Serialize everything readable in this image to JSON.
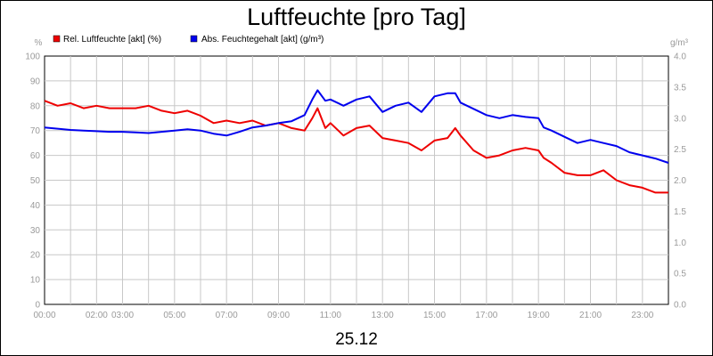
{
  "chart_data": {
    "type": "line",
    "title": "Luftfeuchte [pro Tag]",
    "footer": "25.12",
    "y_left_unit": "%",
    "y_right_unit": "g/m³",
    "y_left_ticks": [
      "0",
      "10",
      "20",
      "30",
      "40",
      "50",
      "60",
      "70",
      "80",
      "90",
      "100"
    ],
    "y_right_ticks": [
      "0.0",
      "0.5",
      "1.0",
      "1.5",
      "2.0",
      "2.5",
      "3.0",
      "3.5",
      "4.0"
    ],
    "x_ticks": [
      {
        "label": "00:00",
        "hour": 0
      },
      {
        "label": "02:00",
        "hour": 2
      },
      {
        "label": "03:00",
        "hour": 3
      },
      {
        "label": "05:00",
        "hour": 5
      },
      {
        "label": "07:00",
        "hour": 7
      },
      {
        "label": "09:00",
        "hour": 9
      },
      {
        "label": "11:00",
        "hour": 11
      },
      {
        "label": "13:00",
        "hour": 13
      },
      {
        "label": "15:00",
        "hour": 15
      },
      {
        "label": "17:00",
        "hour": 17
      },
      {
        "label": "19:00",
        "hour": 19
      },
      {
        "label": "21:00",
        "hour": 21
      },
      {
        "label": "23:00",
        "hour": 23
      }
    ],
    "x_range_hours": [
      0,
      24
    ],
    "y_left_range": [
      0,
      100
    ],
    "y_right_range": [
      0,
      4
    ],
    "grid": true,
    "legend_position": "top-left",
    "series": [
      {
        "name": "Rel. Luftfeuchte [akt] (%)",
        "color": "#ee0000",
        "axis": "left",
        "hours": [
          0,
          0.5,
          1,
          1.5,
          2,
          2.5,
          3,
          3.5,
          4,
          4.5,
          5,
          5.5,
          6,
          6.5,
          7,
          7.5,
          8,
          8.5,
          9,
          9.5,
          10,
          10.3,
          10.5,
          10.8,
          11,
          11.5,
          12,
          12.5,
          13,
          13.5,
          14,
          14.5,
          15,
          15.5,
          15.8,
          16,
          16.5,
          17,
          17.5,
          18,
          18.5,
          19,
          19.2,
          19.5,
          20,
          20.5,
          21,
          21.5,
          22,
          22.5,
          23,
          23.5,
          24
        ],
        "values": [
          82,
          80,
          81,
          79,
          80,
          79,
          79,
          79,
          80,
          78,
          77,
          78,
          76,
          73,
          74,
          73,
          74,
          72,
          73,
          71,
          70,
          75,
          79,
          71,
          73,
          68,
          71,
          72,
          67,
          66,
          65,
          62,
          66,
          67,
          71,
          68,
          62,
          59,
          60,
          62,
          63,
          62,
          59,
          57,
          53,
          52,
          52,
          54,
          50,
          48,
          47,
          45,
          45
        ]
      },
      {
        "name": "Abs. Feuchtegehalt [akt] (g/m³)",
        "color": "#0000ee",
        "axis": "right",
        "hours": [
          0,
          0.5,
          1,
          1.5,
          2,
          2.5,
          3,
          3.5,
          4,
          4.5,
          5,
          5.5,
          6,
          6.5,
          7,
          7.5,
          8,
          8.5,
          9,
          9.5,
          10,
          10.3,
          10.5,
          10.8,
          11,
          11.5,
          12,
          12.5,
          13,
          13.5,
          14,
          14.5,
          15,
          15.5,
          15.8,
          16,
          16.5,
          17,
          17.5,
          18,
          18.5,
          19,
          19.2,
          19.5,
          20,
          20.5,
          21,
          21.5,
          22,
          22.5,
          23,
          23.5,
          24
        ],
        "values": [
          2.85,
          2.83,
          2.81,
          2.8,
          2.79,
          2.78,
          2.78,
          2.77,
          2.76,
          2.78,
          2.8,
          2.82,
          2.8,
          2.75,
          2.72,
          2.78,
          2.85,
          2.88,
          2.92,
          2.95,
          3.05,
          3.3,
          3.45,
          3.28,
          3.3,
          3.2,
          3.3,
          3.35,
          3.1,
          3.2,
          3.25,
          3.1,
          3.35,
          3.4,
          3.4,
          3.25,
          3.15,
          3.05,
          3.0,
          3.05,
          3.02,
          3.0,
          2.85,
          2.8,
          2.7,
          2.6,
          2.65,
          2.6,
          2.55,
          2.45,
          2.4,
          2.35,
          2.28
        ]
      }
    ]
  }
}
